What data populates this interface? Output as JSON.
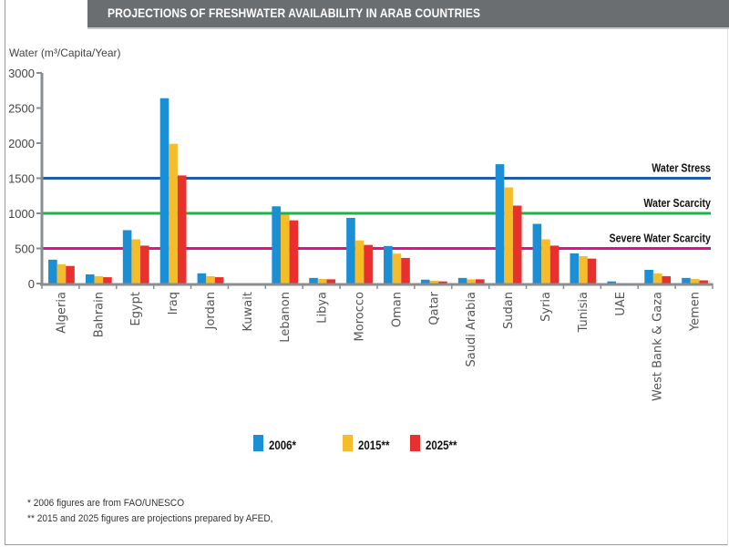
{
  "header": {
    "title": "PROJECTIONS OF FRESHWATER AVAILABILITY IN ARAB COUNTRIES"
  },
  "footnotes": [
    "* 2006 figures are from FAO/UNESCO",
    "** 2015 and 2025 figures are projections prepared by AFED,"
  ],
  "chart_data": {
    "type": "bar",
    "title": "PROJECTIONS OF FRESHWATER AVAILABILITY IN ARAB COUNTRIES",
    "xlabel": "",
    "ylabel": "Water (m³/Capita/Year)",
    "ylim": [
      0,
      3000
    ],
    "yticks": [
      0,
      500,
      1000,
      1500,
      2000,
      2500,
      3000
    ],
    "grid": false,
    "legend_position": "bottom-center",
    "categories": [
      "Algeria",
      "Bahrain",
      "Egypt",
      "Iraq",
      "Jordan",
      "Kuwait",
      "Lebanon",
      "Libya",
      "Morocco",
      "Oman",
      "Qatar",
      "Saudi Arabia",
      "Sudan",
      "Syria",
      "Tunisia",
      "UAE",
      "West Bank & Gaza",
      "Yemen"
    ],
    "series": [
      {
        "name": "2006*",
        "color": "#1a8fd6",
        "values": [
          340,
          130,
          760,
          2640,
          145,
          0,
          1100,
          80,
          935,
          535,
          55,
          80,
          1700,
          850,
          430,
          30,
          195,
          80
        ]
      },
      {
        "name": "2015**",
        "color": "#f6bd2a",
        "values": [
          275,
          105,
          630,
          1990,
          105,
          0,
          980,
          65,
          615,
          425,
          40,
          60,
          1370,
          630,
          390,
          0,
          145,
          65
        ]
      },
      {
        "name": "2025**",
        "color": "#e8312f",
        "values": [
          250,
          90,
          540,
          1540,
          90,
          0,
          900,
          60,
          550,
          365,
          30,
          60,
          1110,
          540,
          355,
          0,
          105,
          45
        ]
      }
    ],
    "reference_lines": [
      {
        "label": "Water Stress",
        "value": 1500,
        "color": "#1c5fa8"
      },
      {
        "label": "Water Scarcity",
        "value": 1000,
        "color": "#1db34a"
      },
      {
        "label": "Severe Water Scarcity",
        "value": 500,
        "color": "#e0118a"
      }
    ]
  }
}
